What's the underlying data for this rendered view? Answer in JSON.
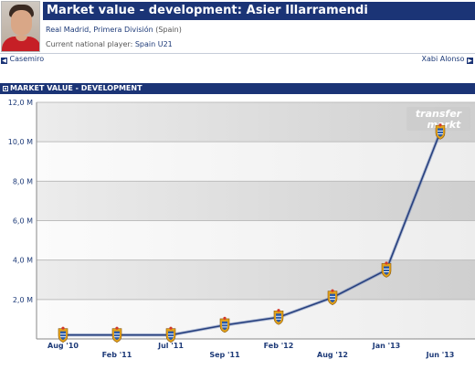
{
  "header": {
    "title": "Market value - development: Asier Illarramendi",
    "club": "Real Madrid",
    "league": "Primera División",
    "country": "(Spain)",
    "national_label": "Current national player:",
    "national_team": "Spain U21"
  },
  "nav": {
    "prev": "Casemiro",
    "next": "Xabi Alonso"
  },
  "section": {
    "title": "MARKET VALUE - DEVELOPMENT"
  },
  "watermark": {
    "line1": "transfer",
    "line2": "markt"
  },
  "colors": {
    "header_blue": "#1b3476",
    "line": "#27407e",
    "band_dark": "#d4d4d4",
    "band_light": "#f6f6f6"
  },
  "chart_data": {
    "type": "line",
    "title": "",
    "xlabel": "",
    "ylabel": "",
    "ylim": [
      0,
      12
    ],
    "y_unit": "M",
    "y_ticks": [
      {
        "value": 0,
        "label": ""
      },
      {
        "value": 2,
        "label": "2,0 M"
      },
      {
        "value": 4,
        "label": "4,0 M"
      },
      {
        "value": 6,
        "label": "6,0 M"
      },
      {
        "value": 8,
        "label": "8,0 M"
      },
      {
        "value": 10,
        "label": "10,0 M"
      },
      {
        "value": 12,
        "label": "12,0 M"
      }
    ],
    "grid": true,
    "categories": [
      "Aug '10",
      "Feb '11",
      "Jul '11",
      "Sep '11",
      "Feb '12",
      "Aug '12",
      "Jan '13",
      "Jun '13"
    ],
    "series": [
      {
        "values": [
          0.2,
          0.2,
          0.2,
          0.7,
          1.1,
          2.1,
          3.5,
          10.5
        ],
        "marker": "club-crest-icon"
      }
    ]
  }
}
